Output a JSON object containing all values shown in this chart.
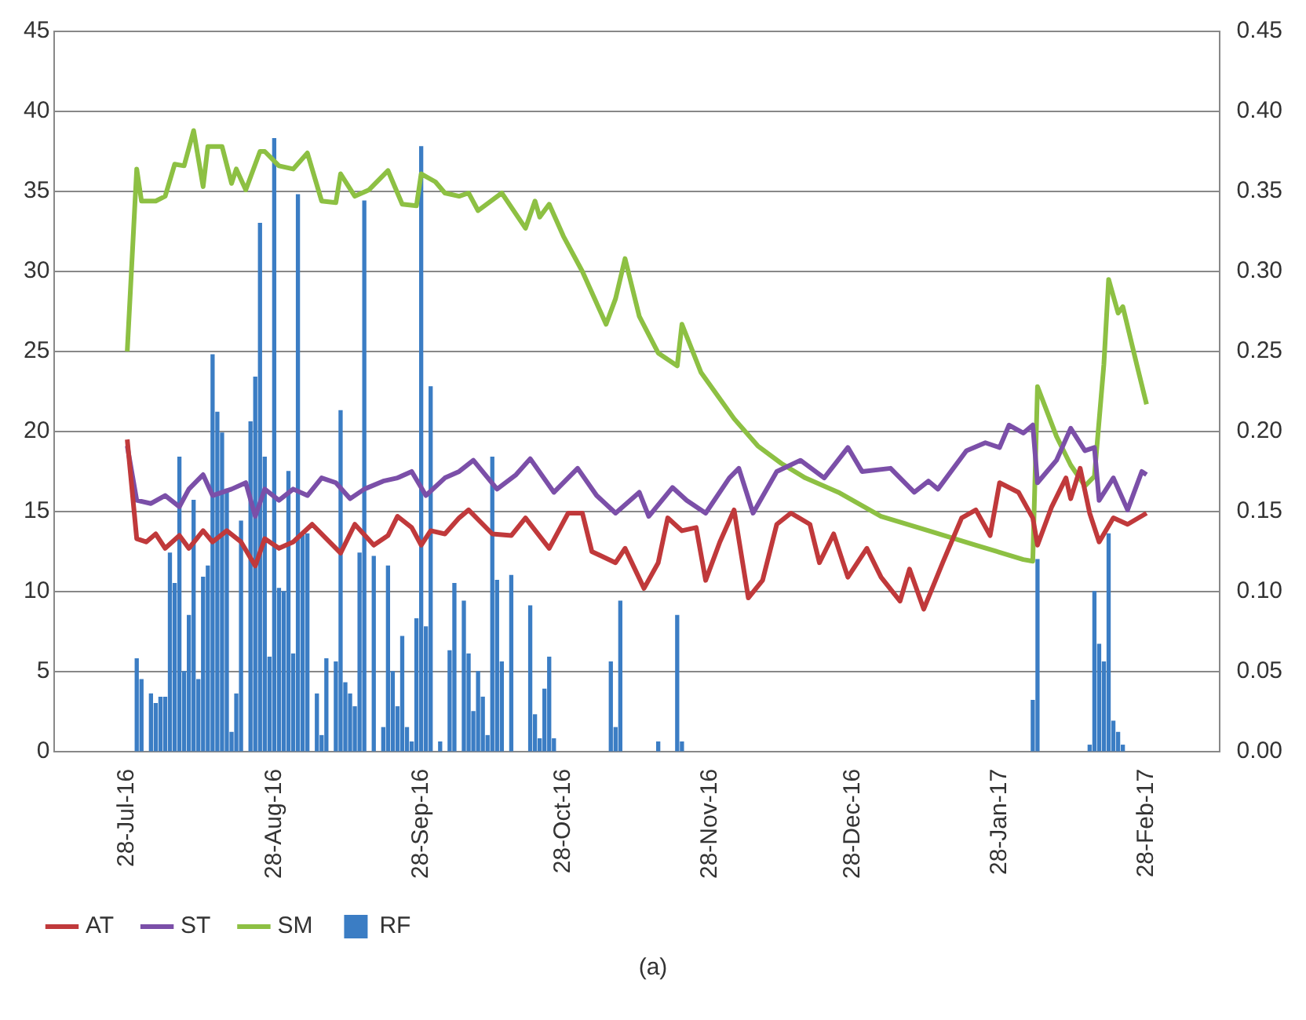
{
  "chart_data": {
    "type": "line",
    "xlim": [
      "2016-07-28",
      "2017-02-28"
    ],
    "xticks": [
      {
        "value": "2016-07-28",
        "label": "28-Jul-16"
      },
      {
        "value": "2016-08-28",
        "label": "28-Aug-16"
      },
      {
        "value": "2016-09-28",
        "label": "28-Sep-16"
      },
      {
        "value": "2016-10-28",
        "label": "28-Oct-16"
      },
      {
        "value": "2016-11-28",
        "label": "28-Nov-16"
      },
      {
        "value": "2016-12-28",
        "label": "28-Dec-16"
      },
      {
        "value": "2017-01-28",
        "label": "28-Jan-17"
      },
      {
        "value": "2017-02-28",
        "label": "28-Feb-17"
      }
    ],
    "ylim": [
      0,
      45
    ],
    "yticks": [
      0,
      5,
      10,
      15,
      20,
      25,
      30,
      35,
      40,
      45
    ],
    "y2lim": [
      0,
      0.45
    ],
    "y2ticks": [
      {
        "value": 0,
        "label": "0.00"
      },
      0.05,
      {
        "value": 0.1,
        "label": "0.10"
      },
      0.15,
      {
        "value": 0.2,
        "label": "0.20"
      },
      0.25,
      {
        "value": 0.3,
        "label": "0.30"
      },
      0.35,
      {
        "value": 0.4,
        "label": "0.40"
      },
      0.45
    ],
    "grid": "y",
    "legend": "bottom",
    "marker": "none",
    "annotations": [
      "(a)"
    ],
    "series": [
      {
        "name": "RF",
        "type": "bar",
        "color": "#3b7dc4",
        "x": [
          "2016-07-30",
          "2016-07-31",
          "2016-08-02",
          "2016-08-03",
          "2016-08-04",
          "2016-08-05",
          "2016-08-06",
          "2016-08-07",
          "2016-08-08",
          "2016-08-09",
          "2016-08-10",
          "2016-08-11",
          "2016-08-12",
          "2016-08-13",
          "2016-08-14",
          "2016-08-15",
          "2016-08-16",
          "2016-08-17",
          "2016-08-18",
          "2016-08-19",
          "2016-08-20",
          "2016-08-21",
          "2016-08-23",
          "2016-08-24",
          "2016-08-25",
          "2016-08-26",
          "2016-08-27",
          "2016-08-28",
          "2016-08-29",
          "2016-08-30",
          "2016-08-31",
          "2016-09-01",
          "2016-09-02",
          "2016-09-03",
          "2016-09-04",
          "2016-09-06",
          "2016-09-07",
          "2016-09-08",
          "2016-09-10",
          "2016-09-11",
          "2016-09-12",
          "2016-09-13",
          "2016-09-14",
          "2016-09-15",
          "2016-09-16",
          "2016-09-18",
          "2016-09-20",
          "2016-09-21",
          "2016-09-22",
          "2016-09-23",
          "2016-09-24",
          "2016-09-25",
          "2016-09-26",
          "2016-09-27",
          "2016-09-28",
          "2016-09-29",
          "2016-09-30",
          "2016-10-02",
          "2016-10-04",
          "2016-10-05",
          "2016-10-07",
          "2016-10-08",
          "2016-10-09",
          "2016-10-10",
          "2016-10-11",
          "2016-10-12",
          "2016-10-13",
          "2016-10-14",
          "2016-10-15",
          "2016-10-17",
          "2016-10-21",
          "2016-10-22",
          "2016-10-23",
          "2016-10-24",
          "2016-10-25",
          "2016-10-26",
          "2016-11-07",
          "2016-11-08",
          "2016-11-09",
          "2016-11-17",
          "2016-11-21",
          "2016-11-22",
          "2017-02-04",
          "2017-02-05",
          "2017-02-16",
          "2017-02-17",
          "2017-02-18",
          "2017-02-19",
          "2017-02-20",
          "2017-02-21",
          "2017-02-22",
          "2017-02-23"
        ],
        "values": [
          5.8,
          4.5,
          3.6,
          3.0,
          3.4,
          3.4,
          12.4,
          10.5,
          18.4,
          5.0,
          8.5,
          15.7,
          4.5,
          10.9,
          11.6,
          24.8,
          21.2,
          19.9,
          16.4,
          1.2,
          3.6,
          14.4,
          20.6,
          23.4,
          33.0,
          18.4,
          5.9,
          38.3,
          10.2,
          10.0,
          17.5,
          6.1,
          34.8,
          13.5,
          13.6,
          3.6,
          1.0,
          5.8,
          5.6,
          21.3,
          4.3,
          3.6,
          2.8,
          12.4,
          34.4,
          12.2,
          1.5,
          11.6,
          5.0,
          2.8,
          7.2,
          1.5,
          0.6,
          8.3,
          37.8,
          7.8,
          22.8,
          0.6,
          6.3,
          10.5,
          9.4,
          6.1,
          2.5,
          5.0,
          3.4,
          1.0,
          18.4,
          10.7,
          5.6,
          11.0,
          9.1,
          2.3,
          0.8,
          3.9,
          5.9,
          0.8,
          5.6,
          1.5,
          9.4,
          0.6,
          8.5,
          0.6,
          3.2,
          12.0,
          0.4,
          10.0,
          6.7,
          5.6,
          13.6,
          1.9,
          1.2,
          0.4
        ]
      },
      {
        "name": "AT",
        "color": "#c0393b",
        "x": [
          "2016-07-28",
          "2016-07-30",
          "2016-08-01",
          "2016-08-03",
          "2016-08-05",
          "2016-08-08",
          "2016-08-10",
          "2016-08-13",
          "2016-08-15",
          "2016-08-18",
          "2016-08-21",
          "2016-08-24",
          "2016-08-26",
          "2016-08-29",
          "2016-09-01",
          "2016-09-05",
          "2016-09-08",
          "2016-09-11",
          "2016-09-14",
          "2016-09-18",
          "2016-09-21",
          "2016-09-23",
          "2016-09-26",
          "2016-09-28",
          "2016-09-30",
          "2016-10-03",
          "2016-10-06",
          "2016-10-08",
          "2016-10-13",
          "2016-10-17",
          "2016-10-20",
          "2016-10-25",
          "2016-10-29",
          "2016-11-01",
          "2016-11-03",
          "2016-11-08",
          "2016-11-10",
          "2016-11-14",
          "2016-11-17",
          "2016-11-19",
          "2016-11-22",
          "2016-11-25",
          "2016-11-27",
          "2016-11-30",
          "2016-12-03",
          "2016-12-06",
          "2016-12-09",
          "2016-12-12",
          "2016-12-15",
          "2016-12-19",
          "2016-12-21",
          "2016-12-24",
          "2016-12-27",
          "2016-12-31",
          "2017-01-03",
          "2017-01-07",
          "2017-01-09",
          "2017-01-12",
          "2017-01-16",
          "2017-01-20",
          "2017-01-23",
          "2017-01-26",
          "2017-01-28",
          "2017-02-01",
          "2017-02-04",
          "2017-02-05",
          "2017-02-08",
          "2017-02-11",
          "2017-02-12",
          "2017-02-14",
          "2017-02-16",
          "2017-02-18",
          "2017-02-21",
          "2017-02-24",
          "2017-02-28"
        ],
        "values": [
          19.5,
          13.3,
          13.1,
          13.6,
          12.7,
          13.5,
          12.7,
          13.8,
          13.1,
          13.8,
          13.1,
          11.6,
          13.3,
          12.7,
          13.1,
          14.2,
          13.3,
          12.4,
          14.2,
          12.9,
          13.5,
          14.7,
          14.0,
          12.9,
          13.8,
          13.6,
          14.6,
          15.1,
          13.6,
          13.5,
          14.6,
          12.7,
          14.9,
          14.9,
          12.5,
          11.8,
          12.7,
          10.2,
          11.8,
          14.6,
          13.8,
          14.0,
          10.7,
          13.1,
          15.1,
          9.6,
          10.7,
          14.2,
          14.9,
          14.2,
          11.8,
          13.6,
          10.9,
          12.7,
          10.9,
          9.4,
          11.4,
          8.9,
          11.8,
          14.6,
          15.1,
          13.5,
          16.8,
          16.2,
          14.6,
          12.9,
          15.3,
          17.1,
          15.8,
          17.7,
          14.9,
          13.1,
          14.6,
          14.2,
          14.9
        ]
      },
      {
        "name": "ST",
        "color": "#7b4fa8",
        "x": [
          "2016-07-28",
          "2016-07-30",
          "2016-08-02",
          "2016-08-05",
          "2016-08-08",
          "2016-08-10",
          "2016-08-13",
          "2016-08-15",
          "2016-08-19",
          "2016-08-22",
          "2016-08-24",
          "2016-08-26",
          "2016-08-29",
          "2016-09-01",
          "2016-09-04",
          "2016-09-07",
          "2016-09-10",
          "2016-09-13",
          "2016-09-16",
          "2016-09-20",
          "2016-09-23",
          "2016-09-26",
          "2016-09-29",
          "2016-10-03",
          "2016-10-06",
          "2016-10-09",
          "2016-10-14",
          "2016-10-18",
          "2016-10-21",
          "2016-10-26",
          "2016-10-31",
          "2016-11-04",
          "2016-11-08",
          "2016-11-13",
          "2016-11-15",
          "2016-11-20",
          "2016-11-23",
          "2016-11-27",
          "2016-12-02",
          "2016-12-04",
          "2016-12-07",
          "2016-12-12",
          "2016-12-17",
          "2016-12-22",
          "2016-12-27",
          "2016-12-30",
          "2017-01-05",
          "2017-01-10",
          "2017-01-13",
          "2017-01-15",
          "2017-01-21",
          "2017-01-25",
          "2017-01-28",
          "2017-01-30",
          "2017-02-02",
          "2017-02-04",
          "2017-02-05",
          "2017-02-09",
          "2017-02-12",
          "2017-02-15",
          "2017-02-17",
          "2017-02-18",
          "2017-02-21",
          "2017-02-24",
          "2017-02-27",
          "2017-02-28"
        ],
        "values": [
          19.1,
          15.7,
          15.5,
          16.0,
          15.3,
          16.4,
          17.3,
          16.0,
          16.4,
          16.8,
          14.7,
          16.4,
          15.7,
          16.4,
          16.0,
          17.1,
          16.8,
          15.8,
          16.4,
          16.9,
          17.1,
          17.5,
          16.0,
          17.1,
          17.5,
          18.2,
          16.4,
          17.3,
          18.3,
          16.2,
          17.7,
          16.0,
          14.9,
          16.2,
          14.7,
          16.5,
          15.7,
          14.9,
          17.1,
          17.7,
          14.9,
          17.5,
          18.2,
          17.1,
          19.0,
          17.5,
          17.7,
          16.2,
          16.9,
          16.4,
          18.8,
          19.3,
          19.0,
          20.4,
          19.9,
          20.4,
          16.8,
          18.2,
          20.2,
          18.8,
          19.0,
          15.7,
          17.1,
          15.1,
          17.5,
          17.3
        ]
      },
      {
        "name": "SM",
        "color": "#8dc043",
        "axis": "y2",
        "x": [
          "2016-07-28",
          "2016-07-30",
          "2016-07-31",
          "2016-08-03",
          "2016-08-05",
          "2016-08-07",
          "2016-08-09",
          "2016-08-11",
          "2016-08-13",
          "2016-08-14",
          "2016-08-17",
          "2016-08-19",
          "2016-08-20",
          "2016-08-22",
          "2016-08-25",
          "2016-08-26",
          "2016-08-29",
          "2016-09-01",
          "2016-09-04",
          "2016-09-07",
          "2016-09-10",
          "2016-09-11",
          "2016-09-14",
          "2016-09-17",
          "2016-09-21",
          "2016-09-24",
          "2016-09-27",
          "2016-09-28",
          "2016-10-01",
          "2016-10-03",
          "2016-10-06",
          "2016-10-08",
          "2016-10-10",
          "2016-10-15",
          "2016-10-20",
          "2016-10-22",
          "2016-10-23",
          "2016-10-25",
          "2016-10-28",
          "2016-11-01",
          "2016-11-06",
          "2016-11-08",
          "2016-11-10",
          "2016-11-13",
          "2016-11-17",
          "2016-11-21",
          "2016-11-22",
          "2016-11-26",
          "2016-12-03",
          "2016-12-08",
          "2016-12-13",
          "2016-12-18",
          "2016-12-25",
          "2017-01-03",
          "2017-01-13",
          "2017-01-23",
          "2017-02-02",
          "2017-02-04",
          "2017-02-05",
          "2017-02-09",
          "2017-02-12",
          "2017-02-15",
          "2017-02-17",
          "2017-02-19",
          "2017-02-20",
          "2017-02-22",
          "2017-02-23",
          "2017-02-26",
          "2017-02-28"
        ],
        "values": [
          0.25,
          0.364,
          0.344,
          0.344,
          0.347,
          0.367,
          0.366,
          0.388,
          0.353,
          0.378,
          0.378,
          0.355,
          0.364,
          0.351,
          0.375,
          0.375,
          0.366,
          0.364,
          0.374,
          0.344,
          0.343,
          0.361,
          0.347,
          0.351,
          0.363,
          0.342,
          0.341,
          0.361,
          0.356,
          0.349,
          0.347,
          0.349,
          0.338,
          0.349,
          0.327,
          0.344,
          0.334,
          0.342,
          0.322,
          0.3,
          0.267,
          0.283,
          0.308,
          0.272,
          0.249,
          0.241,
          0.267,
          0.237,
          0.208,
          0.191,
          0.18,
          0.171,
          0.162,
          0.147,
          0.138,
          0.129,
          0.12,
          0.119,
          0.228,
          0.197,
          0.179,
          0.166,
          0.172,
          0.242,
          0.295,
          0.274,
          0.278,
          0.241,
          0.217
        ]
      }
    ]
  }
}
